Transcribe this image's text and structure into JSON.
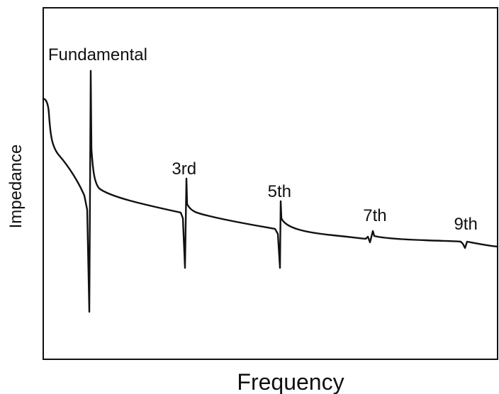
{
  "chart_data": {
    "type": "line",
    "title": "",
    "xlabel": "Frequency",
    "ylabel": "Impedance",
    "tick_labels_shown": false,
    "grid": false,
    "legend": "none",
    "line_color": "#111111",
    "annotations": [
      {
        "label": "Fundamental",
        "x": 0.12
      },
      {
        "label": "3rd",
        "x": 0.31
      },
      {
        "label": "5th",
        "x": 0.52
      },
      {
        "label": "7th",
        "x": 0.73
      },
      {
        "label": "9th",
        "x": 0.93
      }
    ]
  }
}
